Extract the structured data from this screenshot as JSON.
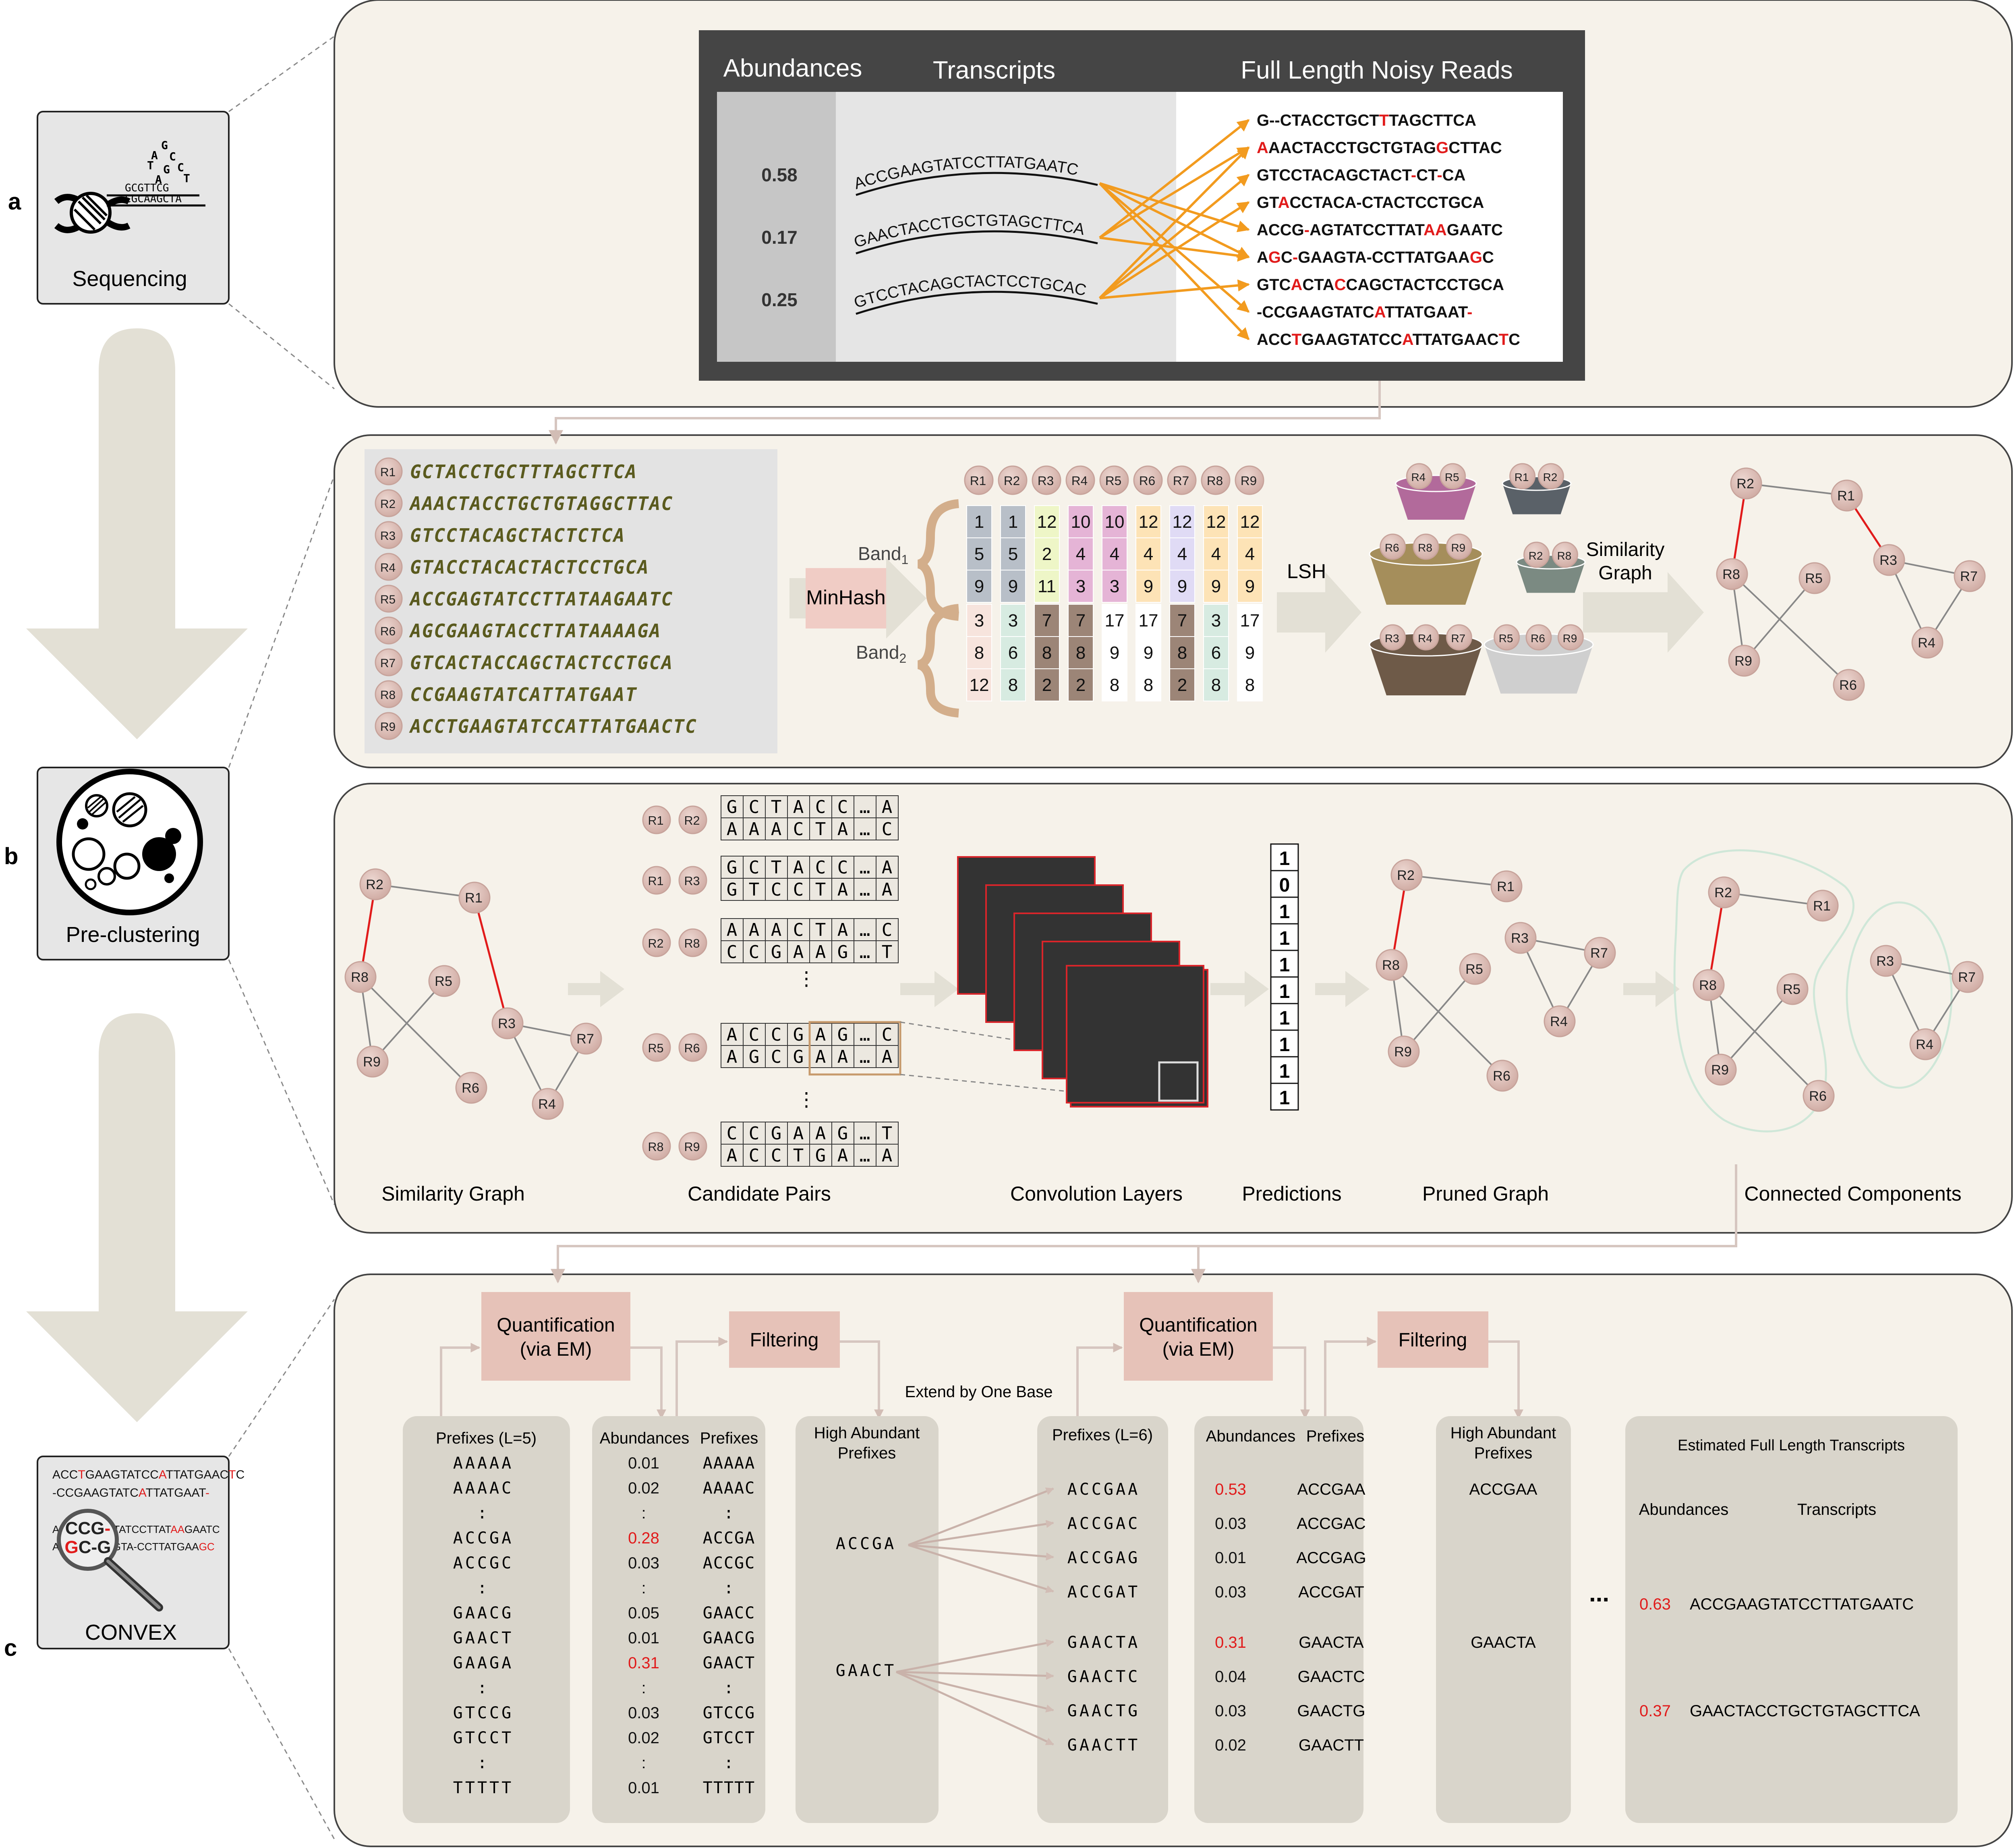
{
  "panels": {
    "a": "a",
    "b": "b",
    "c": "c",
    "sequencing_label": "Sequencing",
    "preclustering_label": "Pre-clustering",
    "convex_label": "CONVEX"
  },
  "seq_icon": {
    "bases": [
      "G",
      "A",
      "C",
      "T",
      "G",
      "C",
      "A",
      "T"
    ],
    "strand1": "GCGTTCG",
    "strand2": "CGCAAGCTA"
  },
  "convex_icon": {
    "lines": [
      {
        "segs": [
          [
            "ACC",
            "k"
          ],
          [
            "T",
            "r"
          ],
          [
            "GAAGTATCC",
            "k"
          ],
          [
            "A",
            "r"
          ],
          [
            "TTATGAAC",
            "k"
          ],
          [
            "T",
            "r"
          ],
          [
            "C",
            "k"
          ]
        ]
      },
      {
        "segs": [
          [
            "-CCGAAGTATC",
            "k"
          ],
          [
            "A",
            "r"
          ],
          [
            "TTATGAAT",
            "k"
          ],
          [
            "-",
            "r"
          ]
        ]
      },
      {
        "segs": [
          [
            "A",
            "k"
          ],
          [
            "CCG-",
            "k"
          ],
          [
            "AGTATCCTTAT",
            "k"
          ],
          [
            "AA",
            "r"
          ],
          [
            "GAATC",
            "k"
          ]
        ]
      },
      {
        "segs": [
          [
            "A",
            "k"
          ],
          [
            "GC-G",
            "k"
          ],
          [
            "AAGTA-CCTTATGAA",
            "k"
          ],
          [
            "GC",
            "r"
          ]
        ]
      }
    ]
  },
  "section_a": {
    "headers": {
      "abundances": "Abundances",
      "transcripts": "Transcripts",
      "reads": "Full Length Noisy Reads"
    },
    "abundances": [
      "0.58",
      "0.17",
      "0.25"
    ],
    "transcripts": [
      "ACCGAAGTATCCTTATGAATC",
      "GAACTACCTGCTGTAGCTTCA",
      "GTCCTACAGCTACTCCTGCAC"
    ],
    "reads": [
      {
        "segs": [
          [
            "G--CTACCTGCT",
            "k"
          ],
          [
            "T",
            "r"
          ],
          [
            "TAGCTTCA",
            "k"
          ]
        ]
      },
      {
        "segs": [
          [
            "A",
            "r"
          ],
          [
            "AACTACCTGCTGTAG",
            "k"
          ],
          [
            "G",
            "r"
          ],
          [
            "CTTAC",
            "k"
          ]
        ]
      },
      {
        "segs": [
          [
            "GTCCTACAGCTACT",
            "k"
          ],
          [
            "-",
            "r"
          ],
          [
            "CT",
            "k"
          ],
          [
            "-",
            "r"
          ],
          [
            "CA",
            "k"
          ]
        ]
      },
      {
        "segs": [
          [
            "GT",
            "k"
          ],
          [
            "A",
            "r"
          ],
          [
            "CCTACA-CTACTCCTGCA",
            "k"
          ]
        ]
      },
      {
        "segs": [
          [
            "ACCG",
            "k"
          ],
          [
            "-",
            "r"
          ],
          [
            "AGTATCCTTAT",
            "k"
          ],
          [
            "AA",
            "r"
          ],
          [
            "GAATC",
            "k"
          ]
        ]
      },
      {
        "segs": [
          [
            "A",
            "k"
          ],
          [
            "G",
            "r"
          ],
          [
            "C",
            "k"
          ],
          [
            "-",
            "r"
          ],
          [
            "GAAGTA-CCTTATGAA",
            "k"
          ],
          [
            "G",
            "r"
          ],
          [
            "C",
            "k"
          ]
        ]
      },
      {
        "segs": [
          [
            "GTC",
            "k"
          ],
          [
            "A",
            "r"
          ],
          [
            "CTA",
            "k"
          ],
          [
            "C",
            "r"
          ],
          [
            "CAGCTACTCCTGCA",
            "k"
          ]
        ]
      },
      {
        "segs": [
          [
            "-CCGAAGTATC",
            "k"
          ],
          [
            "A",
            "r"
          ],
          [
            "TTATGAAT",
            "k"
          ],
          [
            "-",
            "r"
          ]
        ]
      },
      {
        "segs": [
          [
            "ACC",
            "k"
          ],
          [
            "T",
            "r"
          ],
          [
            "GAAGTATCC",
            "k"
          ],
          [
            "A",
            "r"
          ],
          [
            "TTATGAAC",
            "k"
          ],
          [
            "T",
            "r"
          ],
          [
            "C",
            "k"
          ]
        ]
      }
    ]
  },
  "section_b1": {
    "read_ids": [
      "R1",
      "R2",
      "R3",
      "R4",
      "R5",
      "R6",
      "R7",
      "R8",
      "R9"
    ],
    "reads": [
      "GCTACCTGCTTTAGCTTCA",
      "AAACTACCTGCTGTAGGCTTAC",
      "GTCCTACAGCTACTCTCA",
      "GTACCTACACTACTCCTGCA",
      "ACCGAGTATCCTTATAAGAATC",
      "AGCGAAGTACCTTATAAAAGA",
      "GTCACTACCAGCTACTCCTGCA",
      "CCGAAGTATCATTATGAAT",
      "ACCTGAAGTATCCATTATGAACTC"
    ],
    "minhash": "MinHash",
    "band1": "Band",
    "band1_sub": "1",
    "band2": "Band",
    "band2_sub": "2",
    "sig_cols": [
      {
        "id": "R1",
        "vals": [
          "1",
          "5",
          "9",
          "3",
          "8",
          "12"
        ]
      },
      {
        "id": "R2",
        "vals": [
          "1",
          "5",
          "9",
          "3",
          "6",
          "8"
        ]
      },
      {
        "id": "R3",
        "vals": [
          "12",
          "2",
          "11",
          "7",
          "8",
          "2"
        ]
      },
      {
        "id": "R4",
        "vals": [
          "10",
          "4",
          "3",
          "7",
          "8",
          "2"
        ]
      },
      {
        "id": "R5",
        "vals": [
          "10",
          "4",
          "3",
          "17",
          "9",
          "8"
        ]
      },
      {
        "id": "R6",
        "vals": [
          "12",
          "4",
          "9",
          "17",
          "9",
          "8"
        ]
      },
      {
        "id": "R7",
        "vals": [
          "12",
          "4",
          "9",
          "7",
          "8",
          "2"
        ]
      },
      {
        "id": "R8",
        "vals": [
          "12",
          "4",
          "9",
          "3",
          "6",
          "8"
        ]
      },
      {
        "id": "R9",
        "vals": [
          "12",
          "4",
          "9",
          "17",
          "9",
          "8"
        ]
      }
    ],
    "lsh": "LSH",
    "buckets": [
      [
        "R4",
        "R5"
      ],
      [
        "R1",
        "R2"
      ],
      [
        "R6",
        "R8",
        "R9"
      ],
      [
        "R2",
        "R8"
      ],
      [
        "R3",
        "R4",
        "R7"
      ],
      [
        "R5",
        "R6",
        "R9"
      ]
    ],
    "similarity_graph_label_1": "Similarity",
    "similarity_graph_label_2": "Graph"
  },
  "section_b2": {
    "similarity_graph": "Similarity Graph",
    "candidate_pairs": "Candidate Pairs",
    "convolution_layers": "Convolution Layers",
    "predictions": "Predictions",
    "pruned_graph": "Pruned Graph",
    "connected_components": "Connected Components",
    "pairs": [
      {
        "a": "R1",
        "b": "R2",
        "top": [
          "G",
          "C",
          "T",
          "A",
          "C",
          "C",
          "…",
          "A"
        ],
        "bot": [
          "A",
          "A",
          "A",
          "C",
          "T",
          "A",
          "…",
          "C"
        ]
      },
      {
        "a": "R1",
        "b": "R3",
        "top": [
          "G",
          "C",
          "T",
          "A",
          "C",
          "C",
          "…",
          "A"
        ],
        "bot": [
          "G",
          "T",
          "C",
          "C",
          "T",
          "A",
          "…",
          "A"
        ]
      },
      {
        "a": "R2",
        "b": "R8",
        "top": [
          "A",
          "A",
          "A",
          "C",
          "T",
          "A",
          "…",
          "C"
        ],
        "bot": [
          "C",
          "C",
          "G",
          "A",
          "A",
          "G",
          "…",
          "T"
        ]
      },
      {
        "a": "R5",
        "b": "R6",
        "top": [
          "A",
          "C",
          "C",
          "G",
          "A",
          "G",
          "…",
          "C"
        ],
        "bot": [
          "A",
          "G",
          "C",
          "G",
          "A",
          "A",
          "…",
          "A"
        ]
      },
      {
        "a": "R8",
        "b": "R9",
        "top": [
          "C",
          "C",
          "G",
          "A",
          "A",
          "G",
          "…",
          "T"
        ],
        "bot": [
          "A",
          "C",
          "C",
          "T",
          "G",
          "A",
          "…",
          "A"
        ]
      }
    ],
    "prediction_values": [
      "1",
      "0",
      "1",
      "1",
      "1",
      "1",
      "1",
      "1",
      "1",
      "1"
    ],
    "node_labels": [
      "R1",
      "R2",
      "R3",
      "R4",
      "R5",
      "R6",
      "R7",
      "R8",
      "R9"
    ]
  },
  "section_c": {
    "quant": [
      "Quantification",
      "(via EM)"
    ],
    "filtering": "Filtering",
    "extend": "Extend by One Base",
    "prefixes_l5": {
      "title": "Prefixes (L=5)",
      "items": [
        "AAAAA",
        "AAAAC",
        ":",
        "ACCGA",
        "ACCGC",
        ":",
        "GAACG",
        "GAACT",
        "GAAGA",
        ":",
        "GTCCG",
        "GTCCT",
        ":",
        "TTTTT"
      ]
    },
    "abund1": {
      "title_a": "Abundances",
      "title_p": "Prefixes",
      "abund": [
        [
          "0.01",
          "k"
        ],
        [
          "0.02",
          "k"
        ],
        [
          ":",
          "k"
        ],
        [
          "0.28",
          "r"
        ],
        [
          "0.03",
          "k"
        ],
        [
          ":",
          "k"
        ],
        [
          "0.05",
          "k"
        ],
        [
          "0.01",
          "k"
        ],
        [
          "0.31",
          "r"
        ],
        [
          ":",
          "k"
        ],
        [
          "0.03",
          "k"
        ],
        [
          "0.02",
          "k"
        ],
        [
          ":",
          "k"
        ],
        [
          "0.01",
          "k"
        ]
      ],
      "prefixes": [
        "AAAAA",
        "AAAAC",
        ":",
        "ACCGA",
        "ACCGC",
        ":",
        "GAACC",
        "GAACG",
        "GAACT",
        ":",
        "GTCCG",
        "GTCCT",
        ":",
        "TTTTT"
      ]
    },
    "high1": {
      "title": [
        "High Abundant",
        "Prefixes"
      ],
      "items": [
        "ACCGA",
        "GAACT"
      ]
    },
    "prefixes_l6": {
      "title": "Prefixes (L=6)",
      "items": [
        "ACCGAA",
        "ACCGAC",
        "ACCGAG",
        "ACCGAT",
        "GAACTA",
        "GAACTC",
        "GAACTG",
        "GAACTT"
      ]
    },
    "abund2": {
      "title_a": "Abundances",
      "title_p": "Prefixes",
      "abund": [
        [
          "0.53",
          "r"
        ],
        [
          "0.03",
          "k"
        ],
        [
          "0.01",
          "k"
        ],
        [
          "0.03",
          "k"
        ],
        [
          "0.31",
          "r"
        ],
        [
          "0.04",
          "k"
        ],
        [
          "0.03",
          "k"
        ],
        [
          "0.02",
          "k"
        ]
      ],
      "prefixes": [
        "ACCGAA",
        "ACCGAC",
        "ACCGAG",
        "ACCGAT",
        "GAACTA",
        "GAACTC",
        "GAACTG",
        "GAACTT"
      ]
    },
    "high2": {
      "title": [
        "High Abundant",
        "Prefixes"
      ],
      "items": [
        "ACCGAA",
        "GAACTA"
      ]
    },
    "ellipsis": "...",
    "estimated": {
      "title": "Estimated Full Length Transcripts",
      "col_a": "Abundances",
      "col_t": "Transcripts",
      "rows": [
        {
          "a": "0.63",
          "t": "ACCGAAGTATCCTTATGAATC"
        },
        {
          "a": "0.37",
          "t": "GAACTACCTGCTGTAGCTTCA"
        }
      ]
    }
  },
  "colors": {
    "panel_bg": "#f6f2ea",
    "panel_border": "#555555",
    "box_bg": "#d9d5cb",
    "node": "#dcbfb8",
    "red": "#e11b1b",
    "orange": "#f29b1f",
    "dark": "#3e3e3e",
    "arrow_gray": "#dedad0",
    "pink_box": "#e6c2b8",
    "olive": "#5a5a1e",
    "component_outline": "#cfe7d8"
  }
}
